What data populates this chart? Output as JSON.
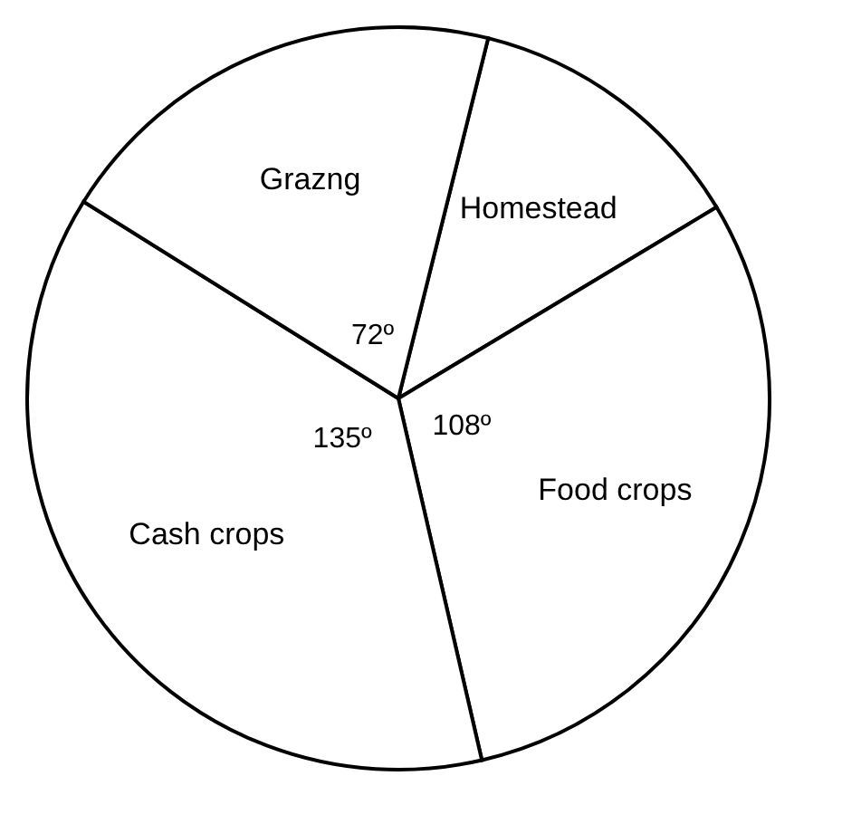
{
  "chart_data": {
    "type": "pie",
    "categories": [
      "Homestead",
      "Food crops",
      "Cash crops",
      "Grazng"
    ],
    "values": [
      45,
      108,
      135,
      72
    ],
    "value_labels": [
      null,
      "108º",
      "135º",
      "72º"
    ],
    "colors": [
      "#ffffff",
      "#ffffff",
      "#ffffff",
      "#ffffff"
    ],
    "legend": false
  }
}
